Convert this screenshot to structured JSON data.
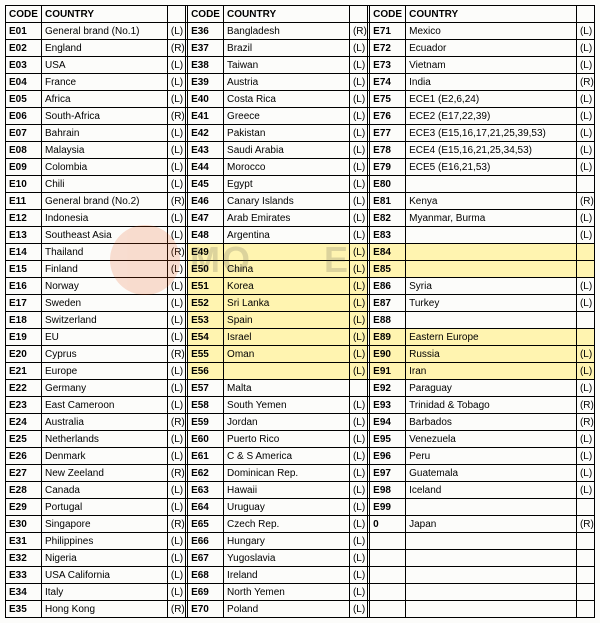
{
  "headers": {
    "code": "CODE",
    "country": "COUNTRY"
  },
  "highlights": [
    "E49",
    "E50",
    "E51",
    "E52",
    "E53",
    "E54",
    "E55",
    "E56",
    "E84",
    "E85",
    "E89",
    "E90",
    "E91"
  ],
  "col1": [
    {
      "c": "E01",
      "n": "General brand (No.1)",
      "f": "(L)"
    },
    {
      "c": "E02",
      "n": "England",
      "f": "(R)"
    },
    {
      "c": "E03",
      "n": "USA",
      "f": "(L)"
    },
    {
      "c": "E04",
      "n": "France",
      "f": "(L)"
    },
    {
      "c": "E05",
      "n": "Africa",
      "f": "(L)"
    },
    {
      "c": "E06",
      "n": "South-Africa",
      "f": "(R)"
    },
    {
      "c": "E07",
      "n": "Bahrain",
      "f": "(L)"
    },
    {
      "c": "E08",
      "n": "Malaysia",
      "f": "(L)"
    },
    {
      "c": "E09",
      "n": "Colombia",
      "f": "(L)"
    },
    {
      "c": "E10",
      "n": "Chili",
      "f": "(L)"
    },
    {
      "c": "E11",
      "n": "General brand (No.2)",
      "f": "(R)"
    },
    {
      "c": "E12",
      "n": "Indonesia",
      "f": "(L)"
    },
    {
      "c": "E13",
      "n": "Southeast Asia",
      "f": "(L)"
    },
    {
      "c": "E14",
      "n": "Thailand",
      "f": "(R)"
    },
    {
      "c": "E15",
      "n": "Finland",
      "f": "(L)"
    },
    {
      "c": "E16",
      "n": "Norway",
      "f": "(L)"
    },
    {
      "c": "E17",
      "n": "Sweden",
      "f": "(L)"
    },
    {
      "c": "E18",
      "n": "Switzerland",
      "f": "(L)"
    },
    {
      "c": "E19",
      "n": "EU",
      "f": "(L)"
    },
    {
      "c": "E20",
      "n": "Cyprus",
      "f": "(R)"
    },
    {
      "c": "E21",
      "n": "Europe",
      "f": "(L)"
    },
    {
      "c": "E22",
      "n": "Germany",
      "f": "(L)"
    },
    {
      "c": "E23",
      "n": "East Cameroon",
      "f": "(L)"
    },
    {
      "c": "E24",
      "n": "Australia",
      "f": "(R)"
    },
    {
      "c": "E25",
      "n": "Netherlands",
      "f": "(L)"
    },
    {
      "c": "E26",
      "n": "Denmark",
      "f": "(L)"
    },
    {
      "c": "E27",
      "n": "New Zeeland",
      "f": "(R)"
    },
    {
      "c": "E28",
      "n": "Canada",
      "f": "(L)"
    },
    {
      "c": "E29",
      "n": "Portugal",
      "f": "(L)"
    },
    {
      "c": "E30",
      "n": "Singapore",
      "f": "(R)"
    },
    {
      "c": "E31",
      "n": "Philippines",
      "f": "(L)"
    },
    {
      "c": "E32",
      "n": "Nigeria",
      "f": "(L)"
    },
    {
      "c": "E33",
      "n": "USA California",
      "f": "(L)"
    },
    {
      "c": "E34",
      "n": "Italy",
      "f": "(L)"
    },
    {
      "c": "E35",
      "n": "Hong Kong",
      "f": "(R)"
    }
  ],
  "col2": [
    {
      "c": "E36",
      "n": "Bangladesh",
      "f": "(R)"
    },
    {
      "c": "E37",
      "n": "Brazil",
      "f": "(L)"
    },
    {
      "c": "E38",
      "n": "Taiwan",
      "f": "(L)"
    },
    {
      "c": "E39",
      "n": "Austria",
      "f": "(L)"
    },
    {
      "c": "E40",
      "n": "Costa Rica",
      "f": "(L)"
    },
    {
      "c": "E41",
      "n": "Greece",
      "f": "(L)"
    },
    {
      "c": "E42",
      "n": "Pakistan",
      "f": "(L)"
    },
    {
      "c": "E43",
      "n": "Saudi Arabia",
      "f": "(L)"
    },
    {
      "c": "E44",
      "n": "Morocco",
      "f": "(L)"
    },
    {
      "c": "E45",
      "n": "Egypt",
      "f": "(L)"
    },
    {
      "c": "E46",
      "n": "Canary Islands",
      "f": "(L)"
    },
    {
      "c": "E47",
      "n": "Arab Emirates",
      "f": "(L)"
    },
    {
      "c": "E48",
      "n": "Argentina",
      "f": "(L)"
    },
    {
      "c": "E49",
      "n": "",
      "f": "(L)"
    },
    {
      "c": "E50",
      "n": "China",
      "f": "(L)"
    },
    {
      "c": "E51",
      "n": "Korea",
      "f": "(L)"
    },
    {
      "c": "E52",
      "n": "Sri Lanka",
      "f": "(L)"
    },
    {
      "c": "E53",
      "n": "Spain",
      "f": "(L)"
    },
    {
      "c": "E54",
      "n": "Israel",
      "f": "(L)"
    },
    {
      "c": "E55",
      "n": "Oman",
      "f": "(L)"
    },
    {
      "c": "E56",
      "n": "",
      "f": "(L)"
    },
    {
      "c": "E57",
      "n": "Malta",
      "f": ""
    },
    {
      "c": "E58",
      "n": "South Yemen",
      "f": "(L)"
    },
    {
      "c": "E59",
      "n": "Jordan",
      "f": "(L)"
    },
    {
      "c": "E60",
      "n": "Puerto Rico",
      "f": "(L)"
    },
    {
      "c": "E61",
      "n": "C & S America",
      "f": "(L)"
    },
    {
      "c": "E62",
      "n": "Dominican Rep.",
      "f": "(L)"
    },
    {
      "c": "E63",
      "n": "Hawaii",
      "f": "(L)"
    },
    {
      "c": "E64",
      "n": "Uruguay",
      "f": "(L)"
    },
    {
      "c": "E65",
      "n": "Czech Rep.",
      "f": "(L)"
    },
    {
      "c": "E66",
      "n": "Hungary",
      "f": "(L)"
    },
    {
      "c": "E67",
      "n": "Yugoslavia",
      "f": "(L)"
    },
    {
      "c": "E68",
      "n": "Ireland",
      "f": "(L)"
    },
    {
      "c": "E69",
      "n": "North Yemen",
      "f": "(L)"
    },
    {
      "c": "E70",
      "n": "Poland",
      "f": "(L)"
    }
  ],
  "col3": [
    {
      "c": "E71",
      "n": "Mexico",
      "f": "(L)"
    },
    {
      "c": "E72",
      "n": "Ecuador",
      "f": "(L)"
    },
    {
      "c": "E73",
      "n": "Vietnam",
      "f": "(L)"
    },
    {
      "c": "E74",
      "n": "India",
      "f": "(R)"
    },
    {
      "c": "E75",
      "n": "ECE1 (E2,6,24)",
      "f": "(L)"
    },
    {
      "c": "E76",
      "n": "ECE2 (E17,22,39)",
      "f": "(L)"
    },
    {
      "c": "E77",
      "n": "ECE3 (E15,16,17,21,25,39,53)",
      "f": "(L)"
    },
    {
      "c": "E78",
      "n": "ECE4 (E15,16,21,25,34,53)",
      "f": "(L)"
    },
    {
      "c": "E79",
      "n": "ECE5 (E16,21,53)",
      "f": "(L)"
    },
    {
      "c": "E80",
      "n": "",
      "f": ""
    },
    {
      "c": "E81",
      "n": "Kenya",
      "f": "(R)"
    },
    {
      "c": "E82",
      "n": "Myanmar, Burma",
      "f": "(L)"
    },
    {
      "c": "E83",
      "n": "",
      "f": "(L)"
    },
    {
      "c": "E84",
      "n": "",
      "f": ""
    },
    {
      "c": "E85",
      "n": "",
      "f": ""
    },
    {
      "c": "E86",
      "n": "Syria",
      "f": "(L)"
    },
    {
      "c": "E87",
      "n": "Turkey",
      "f": "(L)"
    },
    {
      "c": "E88",
      "n": "",
      "f": ""
    },
    {
      "c": "E89",
      "n": "Eastern Europe",
      "f": ""
    },
    {
      "c": "E90",
      "n": "Russia",
      "f": "(L)"
    },
    {
      "c": "E91",
      "n": "Iran",
      "f": "(L)"
    },
    {
      "c": "E92",
      "n": "Paraguay",
      "f": "(L)"
    },
    {
      "c": "E93",
      "n": "Trinidad & Tobago",
      "f": "(R)"
    },
    {
      "c": "E94",
      "n": "Barbados",
      "f": "(R)"
    },
    {
      "c": "E95",
      "n": "Venezuela",
      "f": "(L)"
    },
    {
      "c": "E96",
      "n": "Peru",
      "f": "(L)"
    },
    {
      "c": "E97",
      "n": "Guatemala",
      "f": "(L)"
    },
    {
      "c": "E98",
      "n": "Iceland",
      "f": "(L)"
    },
    {
      "c": "E99",
      "n": "",
      "f": ""
    },
    {
      "c": "0",
      "n": "Japan",
      "f": "(R)"
    },
    {
      "c": "",
      "n": "",
      "f": ""
    },
    {
      "c": "",
      "n": "",
      "f": ""
    },
    {
      "c": "",
      "n": "",
      "f": ""
    },
    {
      "c": "",
      "n": "",
      "f": ""
    },
    {
      "c": "",
      "n": "",
      "f": ""
    }
  ]
}
